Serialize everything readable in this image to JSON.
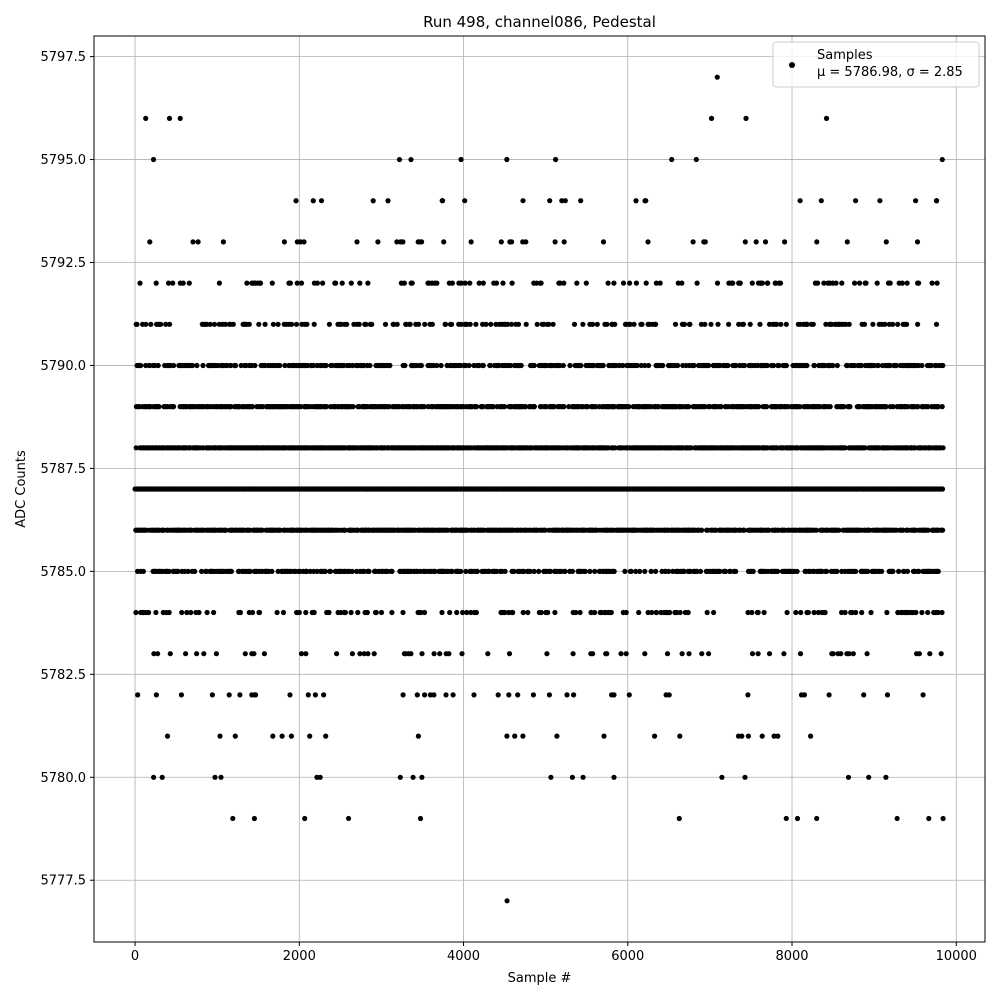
{
  "chart_data": {
    "type": "scatter",
    "title": "Run 498, channel086, Pedestal",
    "xlabel": "Sample #",
    "ylabel": "ADC Counts",
    "xlim": [
      -500,
      10350
    ],
    "ylim": [
      5776,
      5798
    ],
    "xticks": [
      0,
      2000,
      4000,
      6000,
      8000,
      10000
    ],
    "xtick_labels": [
      "0",
      "2000",
      "4000",
      "6000",
      "8000",
      "10000"
    ],
    "yticks": [
      5777.5,
      5780.0,
      5782.5,
      5785.0,
      5787.5,
      5790.0,
      5792.5,
      5795.0,
      5797.5
    ],
    "ytick_labels": [
      "5777.5",
      "5780.0",
      "5782.5",
      "5785.0",
      "5787.5",
      "5790.0",
      "5792.5",
      "5795.0",
      "5797.5"
    ],
    "grid": true,
    "legend_position": "top-right",
    "marker_color": "#000000",
    "series": [
      {
        "name": "Samples",
        "stats_label": "μ = 5786.98, σ = 2.85",
        "n_samples": 9840,
        "level_values": [
          5777,
          5779,
          5780,
          5781,
          5782,
          5783,
          5784,
          5785,
          5786,
          5787,
          5788,
          5789,
          5790,
          5791,
          5792,
          5793,
          5794,
          5795,
          5796,
          5797
        ],
        "level_density": [
          0.0002,
          0.006,
          0.015,
          0.03,
          0.05,
          0.1,
          0.2,
          0.45,
          0.75,
          1.0,
          0.85,
          0.6,
          0.4,
          0.25,
          0.15,
          0.05,
          0.015,
          0.008,
          0.002,
          0.0002
        ],
        "outliers": [
          {
            "x": 4530,
            "y": 5777
          },
          {
            "x": 7090,
            "y": 5797
          },
          {
            "x": 130,
            "y": 5796
          },
          {
            "x": 550,
            "y": 5796
          },
          {
            "x": 7020,
            "y": 5796
          },
          {
            "x": 7440,
            "y": 5796
          },
          {
            "x": 8420,
            "y": 5796
          },
          {
            "x": 3220,
            "y": 5795
          },
          {
            "x": 3360,
            "y": 5795
          },
          {
            "x": 9830,
            "y": 5795
          },
          {
            "x": 1960,
            "y": 5794
          },
          {
            "x": 2170,
            "y": 5794
          },
          {
            "x": 2900,
            "y": 5794
          },
          {
            "x": 3080,
            "y": 5794
          },
          {
            "x": 6100,
            "y": 5794
          },
          {
            "x": 6210,
            "y": 5794
          },
          {
            "x": 9760,
            "y": 5794
          },
          {
            "x": 1190,
            "y": 5779
          },
          {
            "x": 2600,
            "y": 5779
          },
          {
            "x": 7930,
            "y": 5779
          },
          {
            "x": 8300,
            "y": 5779
          },
          {
            "x": 9280,
            "y": 5779
          }
        ]
      }
    ]
  }
}
